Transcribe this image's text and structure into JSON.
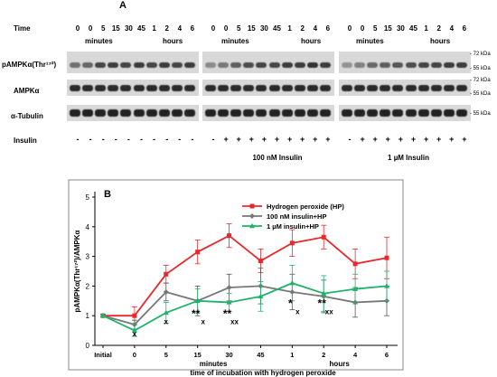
{
  "panel_a": {
    "letter": "A",
    "time_label": "Time",
    "time_points": [
      "0",
      "0",
      "5",
      "15",
      "30",
      "45",
      "1",
      "2",
      "4",
      "6"
    ],
    "minutes_label": "minutes",
    "hours_label": "hours",
    "rows": [
      "pAMPKα(Thr¹⁷²)",
      "AMPKα",
      "α-Tubulin"
    ],
    "kda_labels": [
      "- 72 kDa",
      "- 55 kDa",
      "- 72 kDa",
      "- 55 kDa",
      "- 55 kDa"
    ],
    "insulin_label": "Insulin",
    "insulin_signs": [
      [
        "-",
        "-",
        "-",
        "-",
        "-",
        "-",
        "-",
        "-",
        "-",
        "-"
      ],
      [
        "-",
        "+",
        "+",
        "+",
        "+",
        "+",
        "+",
        "+",
        "+",
        "+"
      ],
      [
        "-",
        "+",
        "+",
        "+",
        "+",
        "+",
        "+",
        "+",
        "+",
        "+"
      ]
    ],
    "group_labels": [
      "",
      "100 nM Insulin",
      "1 µM Insulin"
    ]
  },
  "chart_data": {
    "panel_letter": "B",
    "type": "line",
    "categories": [
      "Initial",
      "0",
      "5",
      "15",
      "30",
      "45",
      "1",
      "2",
      "4",
      "6"
    ],
    "tick_sublabels": {
      "minutes_label": "minutes",
      "hours_label": "hours"
    },
    "xlabel": "time of incubation with hydrogen peroxide",
    "ylabel": "pAMPKα(Thr¹⁷²)/AMPKα",
    "ylim": [
      0,
      5
    ],
    "yticks": [
      0,
      1,
      2,
      3,
      4,
      5
    ],
    "grid": false,
    "legend_position": "top-right",
    "series": [
      {
        "name": "Hydrogen peroxide (HP)",
        "color": "#e8282b",
        "marker": "square",
        "values": [
          1.0,
          1.0,
          2.4,
          3.15,
          3.7,
          2.85,
          3.45,
          3.65,
          2.75,
          2.95
        ],
        "errors": [
          0.05,
          0.3,
          0.3,
          0.4,
          0.4,
          0.4,
          0.45,
          0.4,
          0.5,
          0.7
        ]
      },
      {
        "name": "100 nM insulin+HP",
        "color": "#777777",
        "marker": "diamond",
        "values": [
          1.0,
          0.7,
          1.8,
          1.5,
          1.95,
          2.0,
          1.8,
          1.65,
          1.45,
          1.5
        ],
        "errors": [
          0.05,
          0.15,
          0.3,
          0.5,
          0.45,
          0.6,
          0.6,
          0.55,
          0.5,
          0.5
        ]
      },
      {
        "name": "1 µM insulin+HP",
        "color": "#1fb36a",
        "marker": "triangle",
        "values": [
          1.0,
          0.5,
          1.1,
          1.5,
          1.45,
          1.65,
          2.1,
          1.75,
          1.9,
          2.0
        ],
        "errors": [
          0.05,
          0.2,
          0.35,
          0.4,
          0.3,
          0.5,
          0.6,
          0.6,
          0.5,
          0.5
        ]
      }
    ],
    "annotations": [
      {
        "category": "0",
        "text": "x",
        "y": 0.3
      },
      {
        "category": "5",
        "text": "x",
        "y": 0.72
      },
      {
        "category": "15",
        "text": "**",
        "y": 0.95
      },
      {
        "category": "15",
        "text": "x",
        "y": 0.72
      },
      {
        "category": "30",
        "text": "**",
        "y": 0.95
      },
      {
        "category": "30",
        "text": "xx",
        "y": 0.72
      },
      {
        "category": "1",
        "text": "*",
        "y": 1.3
      },
      {
        "category": "1",
        "text": "x",
        "y": 1.05
      },
      {
        "category": "2",
        "text": "**",
        "y": 1.3
      },
      {
        "category": "2",
        "text": "xx",
        "y": 1.05
      }
    ]
  }
}
